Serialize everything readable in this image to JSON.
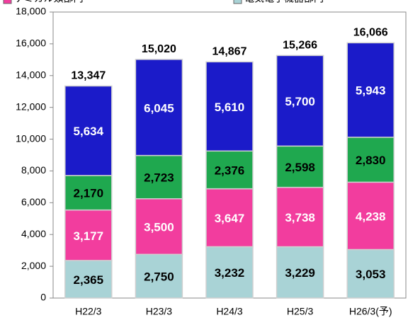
{
  "chart_data": {
    "type": "stacked_bar",
    "categories": [
      "H22/3",
      "H23/3",
      "H24/3",
      "H25/3",
      "H26/3(予)"
    ],
    "series": [
      {
        "name": "電気電子機器部門",
        "color": "#a9d3d6",
        "label_color": "#000000",
        "values": [
          2365,
          2750,
          3232,
          3229,
          3053
        ],
        "value_labels": [
          "2,365",
          "2,750",
          "3,232",
          "3,229",
          "3,053"
        ]
      },
      {
        "name": "ケミカル類部門",
        "color": "#f23d9e",
        "label_color": "#ffffff",
        "values": [
          3177,
          3500,
          3647,
          3738,
          4238
        ],
        "value_labels": [
          "3,177",
          "3,500",
          "3,647",
          "3,738",
          "4,238"
        ]
      },
      {
        "color": "#1fa84f",
        "label_color": "#000000",
        "values": [
          2170,
          2723,
          2376,
          2598,
          2830
        ],
        "value_labels": [
          "2,170",
          "2,723",
          "2,376",
          "2,598",
          "2,830"
        ]
      },
      {
        "color": "#1b1bc9",
        "label_color": "#ffffff",
        "values": [
          5634,
          6045,
          5610,
          5700,
          5943
        ],
        "value_labels": [
          "5,634",
          "6,045",
          "5,610",
          "5,700",
          "5,943"
        ]
      }
    ],
    "total_labels": [
      "13,347",
      "15,020",
      "14,867",
      "15,266",
      "16,066"
    ],
    "ylim": [
      0,
      18000
    ],
    "yticks": [
      0,
      {
        "value": 2000,
        "label": "2,000"
      },
      {
        "value": 4000,
        "label": "4,000"
      },
      {
        "value": 6000,
        "label": "6,000"
      },
      {
        "value": 8000,
        "label": "8,000"
      },
      {
        "value": 10000,
        "label": "10,000"
      },
      {
        "value": 12000,
        "label": "12,000"
      },
      {
        "value": 14000,
        "label": "14,000"
      },
      {
        "value": 16000,
        "label": "16,000"
      },
      {
        "value": 18000,
        "label": "18,000"
      }
    ]
  }
}
